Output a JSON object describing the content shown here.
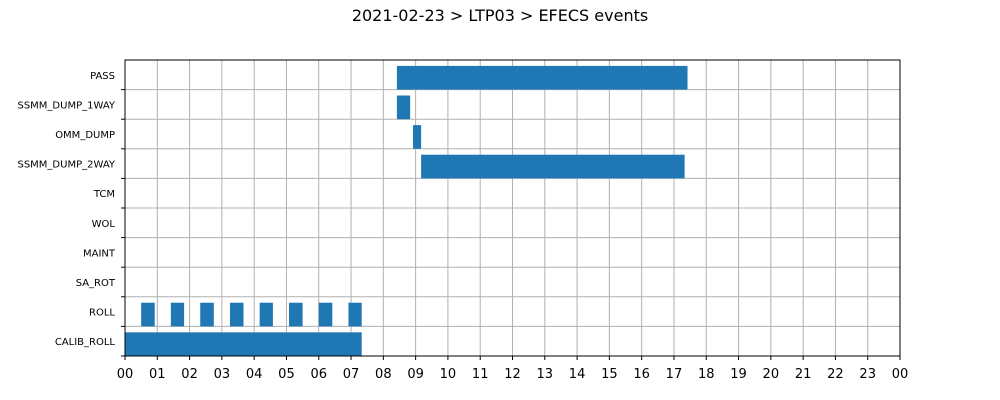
{
  "chart_data": {
    "type": "bar",
    "orientation": "horizontal-timeline",
    "title": "2021-02-23 > LTP03 > EFECS events",
    "xlabel": "",
    "ylabel": "",
    "xlim": [
      0,
      24
    ],
    "x_tick_labels": [
      "00",
      "01",
      "02",
      "03",
      "04",
      "05",
      "06",
      "07",
      "08",
      "09",
      "10",
      "11",
      "12",
      "13",
      "14",
      "15",
      "16",
      "17",
      "18",
      "19",
      "20",
      "21",
      "22",
      "23",
      "00"
    ],
    "grid": true,
    "bar_color": "#1f77b4",
    "categories": [
      "CALIB_ROLL",
      "ROLL",
      "SA_ROT",
      "MAINT",
      "WOL",
      "TCM",
      "SSMM_DUMP_2WAY",
      "OMM_DUMP",
      "SSMM_DUMP_1WAY",
      "PASS"
    ],
    "series": [
      {
        "category": "PASS",
        "intervals": [
          [
            8.42,
            17.42
          ]
        ]
      },
      {
        "category": "SSMM_DUMP_1WAY",
        "intervals": [
          [
            8.42,
            8.83
          ]
        ]
      },
      {
        "category": "OMM_DUMP",
        "intervals": [
          [
            8.92,
            9.17
          ]
        ]
      },
      {
        "category": "SSMM_DUMP_2WAY",
        "intervals": [
          [
            9.17,
            17.33
          ]
        ]
      },
      {
        "category": "TCM",
        "intervals": []
      },
      {
        "category": "WOL",
        "intervals": []
      },
      {
        "category": "MAINT",
        "intervals": []
      },
      {
        "category": "SA_ROT",
        "intervals": []
      },
      {
        "category": "ROLL",
        "intervals": [
          [
            0.5,
            0.92
          ],
          [
            1.42,
            1.83
          ],
          [
            2.33,
            2.75
          ],
          [
            3.25,
            3.67
          ],
          [
            4.17,
            4.58
          ],
          [
            5.08,
            5.5
          ],
          [
            6.0,
            6.42
          ],
          [
            6.92,
            7.33
          ]
        ]
      },
      {
        "category": "CALIB_ROLL",
        "intervals": [
          [
            0.0,
            7.33
          ]
        ]
      }
    ]
  }
}
